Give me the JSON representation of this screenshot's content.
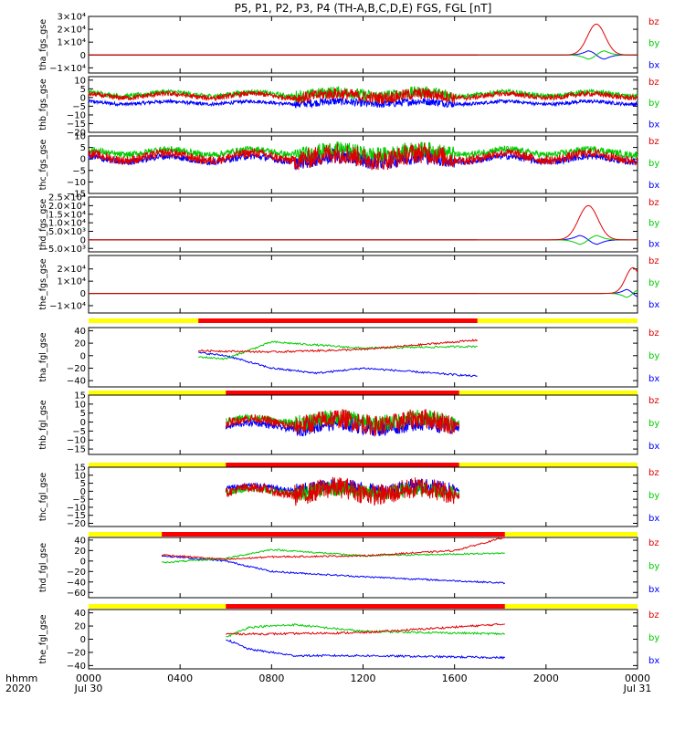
{
  "title": "P5, P1, P2, P3, P4 (TH-A,B,C,D,E) FGS, FGL [nT]",
  "colors": {
    "bz": "#e00000",
    "by": "#00cc00",
    "bx": "#0000ff",
    "bar_on": "#ff0000",
    "bar_off": "#ffff00",
    "zero": "#cc0000"
  },
  "legend": [
    "bz",
    "by",
    "bx"
  ],
  "chart_data": {
    "type": "line",
    "xaxis": {
      "unit": "hhmm",
      "year": "2020",
      "range_hours": [
        0,
        24
      ],
      "ticks": [
        {
          "h": 0,
          "label": "0000",
          "sub": "Jul 30"
        },
        {
          "h": 4,
          "label": "0400",
          "sub": ""
        },
        {
          "h": 8,
          "label": "0800",
          "sub": ""
        },
        {
          "h": 12,
          "label": "1200",
          "sub": ""
        },
        {
          "h": 16,
          "label": "1600",
          "sub": ""
        },
        {
          "h": 20,
          "label": "2000",
          "sub": ""
        },
        {
          "h": 24,
          "label": "0000",
          "sub": "Jul 31"
        }
      ]
    },
    "panels": [
      {
        "id": "tha_fgs_gse",
        "ylabel": "tha_fgs_gse",
        "kind": "spike",
        "ylim": [
          -14000,
          30000
        ],
        "yticks": [
          {
            "v": 30000,
            "label": "3×10⁴"
          },
          {
            "v": 20000,
            "label": "2×10⁴"
          },
          {
            "v": 10000,
            "label": "1×10⁴"
          },
          {
            "v": 0,
            "label": "0"
          },
          {
            "v": -10000,
            "label": "−1×10⁴"
          }
        ],
        "peak_hour": 22.2,
        "width_hours": 0.55,
        "peaks": {
          "bz": 24000,
          "by": -5000,
          "bx": 5000
        }
      },
      {
        "id": "thb_fgs_gse",
        "ylabel": "thb_fgs_gse",
        "kind": "noise",
        "ylim": [
          -20,
          12
        ],
        "yticks": [
          {
            "v": 10,
            "label": "10"
          },
          {
            "v": 5,
            "label": "5"
          },
          {
            "v": 0,
            "label": "0"
          },
          {
            "v": -5,
            "label": "−5"
          },
          {
            "v": -10,
            "label": "−10"
          },
          {
            "v": -15,
            "label": "−15"
          },
          {
            "v": -20,
            "label": "−20"
          }
        ],
        "mean": {
          "bz": 1,
          "by": 2,
          "bx": -3
        },
        "amp": {
          "bz": 3,
          "by": 3,
          "bx": 2
        }
      },
      {
        "id": "thc_fgs_gse",
        "ylabel": "thc_fgs_gse",
        "kind": "noise",
        "ylim": [
          -15,
          10
        ],
        "yticks": [
          {
            "v": 10,
            "label": "10"
          },
          {
            "v": 5,
            "label": "5"
          },
          {
            "v": 0,
            "label": "0"
          },
          {
            "v": -5,
            "label": "−5"
          },
          {
            "v": -10,
            "label": "−10"
          },
          {
            "v": -15,
            "label": "−15"
          }
        ],
        "mean": {
          "bz": 1,
          "by": 3,
          "bx": 0
        },
        "amp": {
          "bz": 4,
          "by": 3,
          "bx": 3
        }
      },
      {
        "id": "thd_fgs_gse",
        "ylabel": "thd_fgs_gse",
        "kind": "spike",
        "ylim": [
          -7000,
          25000
        ],
        "yticks": [
          {
            "v": 25000,
            "label": "2.5×10⁴"
          },
          {
            "v": 20000,
            "label": "2.0×10⁴"
          },
          {
            "v": 15000,
            "label": "1.5×10⁴"
          },
          {
            "v": 10000,
            "label": "1.0×10⁴"
          },
          {
            "v": 5000,
            "label": "5.0×10³"
          },
          {
            "v": 0,
            "label": "0"
          },
          {
            "v": -5000,
            "label": "−5.0×10³"
          }
        ],
        "peak_hour": 21.85,
        "width_hours": 0.6,
        "peaks": {
          "bz": 20000,
          "by": -4000,
          "bx": 4000
        }
      },
      {
        "id": "the_fgs_gse",
        "ylabel": "the_fgs_gse",
        "kind": "spike",
        "ylim": [
          -16000,
          31000
        ],
        "yticks": [
          {
            "v": 20000,
            "label": "2×10⁴"
          },
          {
            "v": 10000,
            "label": "1×10⁴"
          },
          {
            "v": 0,
            "label": "0"
          },
          {
            "v": -10000,
            "label": "−1×10⁴"
          }
        ],
        "peak_hour": 23.8,
        "width_hours": 0.45,
        "peaks": {
          "bz": 21000,
          "by": -5000,
          "bx": 5000
        }
      },
      {
        "id": "tha_fgl_gse",
        "ylabel": "tha_fgl_gse",
        "kind": "trend",
        "ylim": [
          -50,
          45
        ],
        "span": [
          4.8,
          17.0
        ],
        "yticks": [
          {
            "v": 40,
            "label": "40"
          },
          {
            "v": 20,
            "label": "20"
          },
          {
            "v": 0,
            "label": "0"
          },
          {
            "v": -20,
            "label": "−20"
          },
          {
            "v": -40,
            "label": "−40"
          }
        ],
        "bar": [
          4.8,
          17.0
        ],
        "trend": {
          "bz": [
            [
              4.8,
              8
            ],
            [
              8,
              6
            ],
            [
              12,
              10
            ],
            [
              17,
              25
            ]
          ],
          "by": [
            [
              4.8,
              -2
            ],
            [
              6,
              -5
            ],
            [
              8,
              22
            ],
            [
              12,
              12
            ],
            [
              17,
              15
            ]
          ],
          "bx": [
            [
              4.8,
              5
            ],
            [
              6,
              0
            ],
            [
              8,
              -20
            ],
            [
              10,
              -28
            ],
            [
              12,
              -20
            ],
            [
              17,
              -33
            ]
          ]
        }
      },
      {
        "id": "thb_fgl_gse",
        "ylabel": "thb_fgl_gse",
        "kind": "noise",
        "ylim": [
          -18,
          15
        ],
        "span": [
          6.0,
          16.2
        ],
        "yticks": [
          {
            "v": 15,
            "label": "15"
          },
          {
            "v": 10,
            "label": "10"
          },
          {
            "v": 5,
            "label": "5"
          },
          {
            "v": 0,
            "label": "0"
          },
          {
            "v": -5,
            "label": "−5"
          },
          {
            "v": -10,
            "label": "−10"
          },
          {
            "v": -15,
            "label": "−15"
          }
        ],
        "bar": [
          6.0,
          16.2
        ],
        "mean": {
          "bz": 0,
          "by": 1,
          "bx": -2
        },
        "amp": {
          "bz": 5,
          "by": 4,
          "bx": 4
        }
      },
      {
        "id": "thc_fgl_gse",
        "ylabel": "thc_fgl_gse",
        "kind": "noise",
        "ylim": [
          -22,
          15
        ],
        "span": [
          6.0,
          16.2
        ],
        "yticks": [
          {
            "v": 15,
            "label": "15"
          },
          {
            "v": 10,
            "label": "10"
          },
          {
            "v": 5,
            "label": "5"
          },
          {
            "v": 0,
            "label": "0"
          },
          {
            "v": -5,
            "label": "−5"
          },
          {
            "v": -10,
            "label": "−10"
          },
          {
            "v": -15,
            "label": "−15"
          },
          {
            "v": -20,
            "label": "−20"
          }
        ],
        "bar": [
          6.0,
          16.2
        ],
        "mean": {
          "bz": 0,
          "by": 0,
          "bx": 2
        },
        "amp": {
          "bz": 6,
          "by": 4,
          "bx": 4
        }
      },
      {
        "id": "thd_fgl_gse",
        "ylabel": "thd_fgl_gse",
        "kind": "trend",
        "ylim": [
          -70,
          45
        ],
        "span": [
          3.2,
          18.2
        ],
        "yticks": [
          {
            "v": 40,
            "label": "40"
          },
          {
            "v": 20,
            "label": "20"
          },
          {
            "v": 0,
            "label": "0"
          },
          {
            "v": -20,
            "label": "−20"
          },
          {
            "v": -40,
            "label": "−40"
          },
          {
            "v": -60,
            "label": "−60"
          }
        ],
        "bar": [
          3.2,
          18.2
        ],
        "trend": {
          "bz": [
            [
              3.2,
              12
            ],
            [
              6,
              3
            ],
            [
              8,
              8
            ],
            [
              12,
              10
            ],
            [
              16,
              20
            ],
            [
              18.2,
              45
            ]
          ],
          "by": [
            [
              3.2,
              -3
            ],
            [
              6,
              5
            ],
            [
              8,
              22
            ],
            [
              12,
              10
            ],
            [
              18.2,
              15
            ]
          ],
          "bx": [
            [
              3.2,
              10
            ],
            [
              6,
              0
            ],
            [
              8,
              -20
            ],
            [
              12,
              -30
            ],
            [
              18.2,
              -42
            ]
          ]
        }
      },
      {
        "id": "the_fgl_gse",
        "ylabel": "the_fgl_gse",
        "kind": "trend",
        "ylim": [
          -45,
          45
        ],
        "span": [
          6.0,
          18.2
        ],
        "yticks": [
          {
            "v": 40,
            "label": "40"
          },
          {
            "v": 20,
            "label": "20"
          },
          {
            "v": 0,
            "label": "0"
          },
          {
            "v": -20,
            "label": "−20"
          },
          {
            "v": -40,
            "label": "−40"
          }
        ],
        "bar": [
          6.0,
          18.2
        ],
        "trend": {
          "bz": [
            [
              6,
              8
            ],
            [
              8,
              8
            ],
            [
              12,
              10
            ],
            [
              18.2,
              23
            ]
          ],
          "by": [
            [
              6,
              3
            ],
            [
              7,
              18
            ],
            [
              9,
              22
            ],
            [
              12,
              12
            ],
            [
              18.2,
              8
            ]
          ],
          "bx": [
            [
              6,
              0
            ],
            [
              7,
              -15
            ],
            [
              9,
              -25
            ],
            [
              12,
              -25
            ],
            [
              18.2,
              -28
            ]
          ]
        }
      }
    ]
  }
}
